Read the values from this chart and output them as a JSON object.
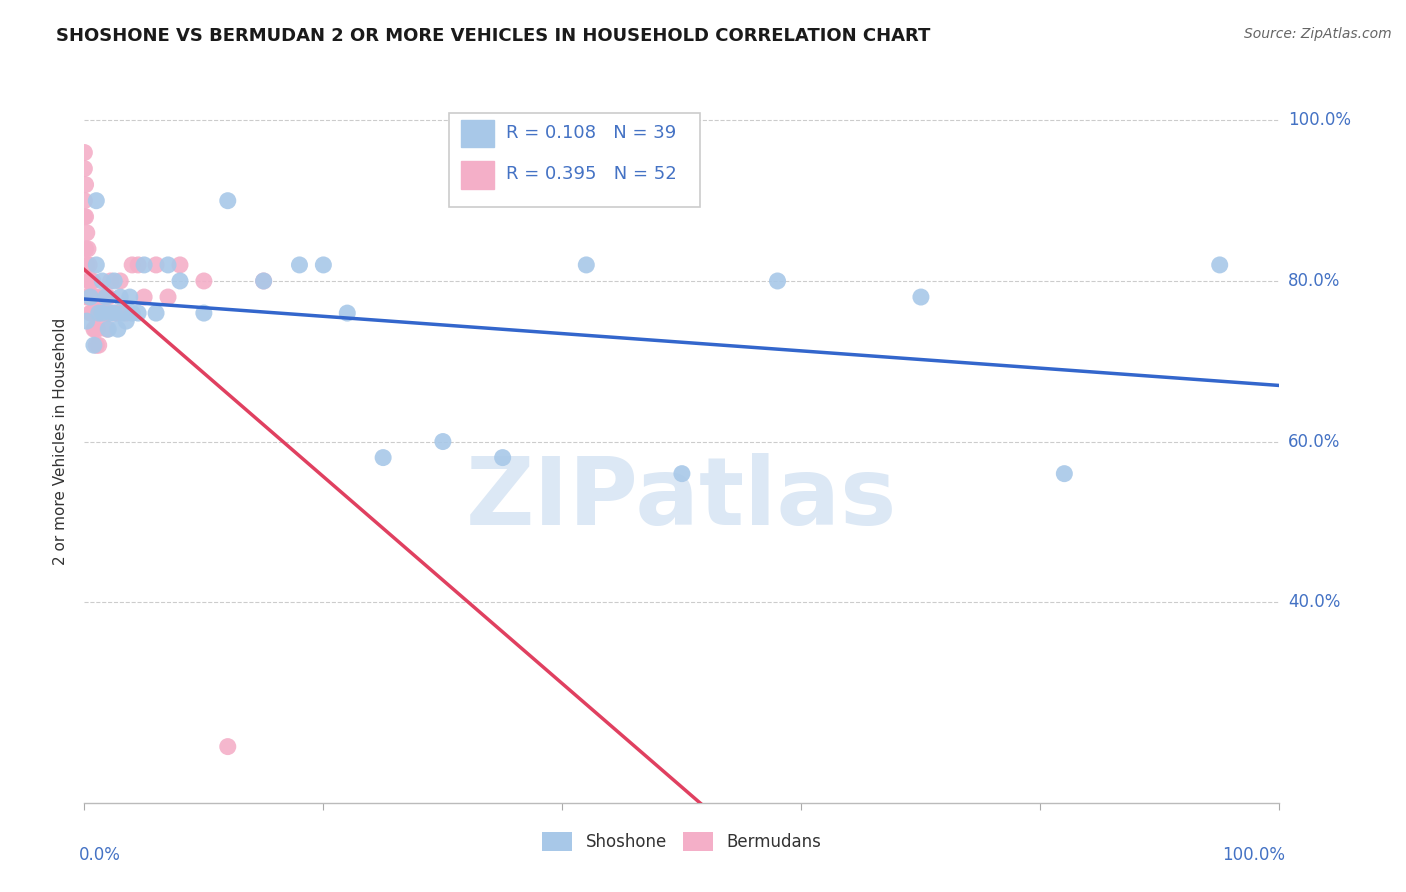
{
  "title": "SHOSHONE VS BERMUDAN 2 OR MORE VEHICLES IN HOUSEHOLD CORRELATION CHART",
  "source": "Source: ZipAtlas.com",
  "ylabel": "2 or more Vehicles in Household",
  "watermark_text": "ZIPatlas",
  "legend_label_blue": "R = 0.108   N = 39",
  "legend_label_pink": "R = 0.395   N = 52",
  "R_shoshone": 0.108,
  "R_bermudans": 0.395,
  "N_shoshone": 39,
  "N_bermudans": 52,
  "shoshone_color": "#a8c8e8",
  "bermudans_color": "#f4afc8",
  "shoshone_line_color": "#3366cc",
  "bermudans_line_color": "#e04060",
  "shoshone_x": [
    0.002,
    0.005,
    0.008,
    0.01,
    0.01,
    0.012,
    0.015,
    0.015,
    0.018,
    0.02,
    0.022,
    0.025,
    0.025,
    0.028,
    0.03,
    0.032,
    0.035,
    0.038,
    0.04,
    0.045,
    0.05,
    0.06,
    0.07,
    0.08,
    0.1,
    0.12,
    0.15,
    0.18,
    0.2,
    0.22,
    0.25,
    0.3,
    0.35,
    0.42,
    0.5,
    0.58,
    0.7,
    0.82,
    0.95
  ],
  "shoshone_y": [
    0.75,
    0.78,
    0.72,
    0.82,
    0.9,
    0.76,
    0.8,
    0.76,
    0.78,
    0.74,
    0.76,
    0.8,
    0.76,
    0.74,
    0.78,
    0.76,
    0.75,
    0.78,
    0.76,
    0.76,
    0.82,
    0.76,
    0.82,
    0.8,
    0.76,
    0.9,
    0.8,
    0.82,
    0.82,
    0.76,
    0.58,
    0.6,
    0.58,
    0.82,
    0.56,
    0.8,
    0.78,
    0.56,
    0.82
  ],
  "bermudans_x": [
    0.0,
    0.0,
    0.0,
    0.0,
    0.001,
    0.001,
    0.001,
    0.002,
    0.002,
    0.002,
    0.003,
    0.003,
    0.004,
    0.004,
    0.005,
    0.005,
    0.006,
    0.006,
    0.007,
    0.007,
    0.008,
    0.008,
    0.009,
    0.009,
    0.01,
    0.01,
    0.011,
    0.011,
    0.012,
    0.012,
    0.013,
    0.014,
    0.015,
    0.016,
    0.017,
    0.018,
    0.019,
    0.02,
    0.022,
    0.025,
    0.028,
    0.03,
    0.035,
    0.04,
    0.045,
    0.05,
    0.06,
    0.07,
    0.08,
    0.1,
    0.12,
    0.15
  ],
  "bermudans_y": [
    0.96,
    0.94,
    0.9,
    0.88,
    0.92,
    0.88,
    0.84,
    0.86,
    0.82,
    0.78,
    0.84,
    0.8,
    0.82,
    0.78,
    0.8,
    0.76,
    0.8,
    0.76,
    0.8,
    0.76,
    0.78,
    0.74,
    0.78,
    0.74,
    0.76,
    0.72,
    0.78,
    0.74,
    0.76,
    0.72,
    0.76,
    0.76,
    0.76,
    0.76,
    0.78,
    0.76,
    0.74,
    0.78,
    0.8,
    0.76,
    0.76,
    0.8,
    0.76,
    0.82,
    0.82,
    0.78,
    0.82,
    0.78,
    0.82,
    0.8,
    0.22,
    0.8
  ],
  "xlim": [
    0.0,
    1.0
  ],
  "ylim": [
    0.15,
    1.05
  ],
  "yticks": [
    0.4,
    0.6,
    0.8,
    1.0
  ],
  "ytick_labels": [
    "40.0%",
    "60.0%",
    "80.0%",
    "100.0%"
  ],
  "grid_color": "#cccccc",
  "title_fontsize": 13,
  "axis_label_color": "#4472c4",
  "text_color": "#333333",
  "source_color": "#666666"
}
